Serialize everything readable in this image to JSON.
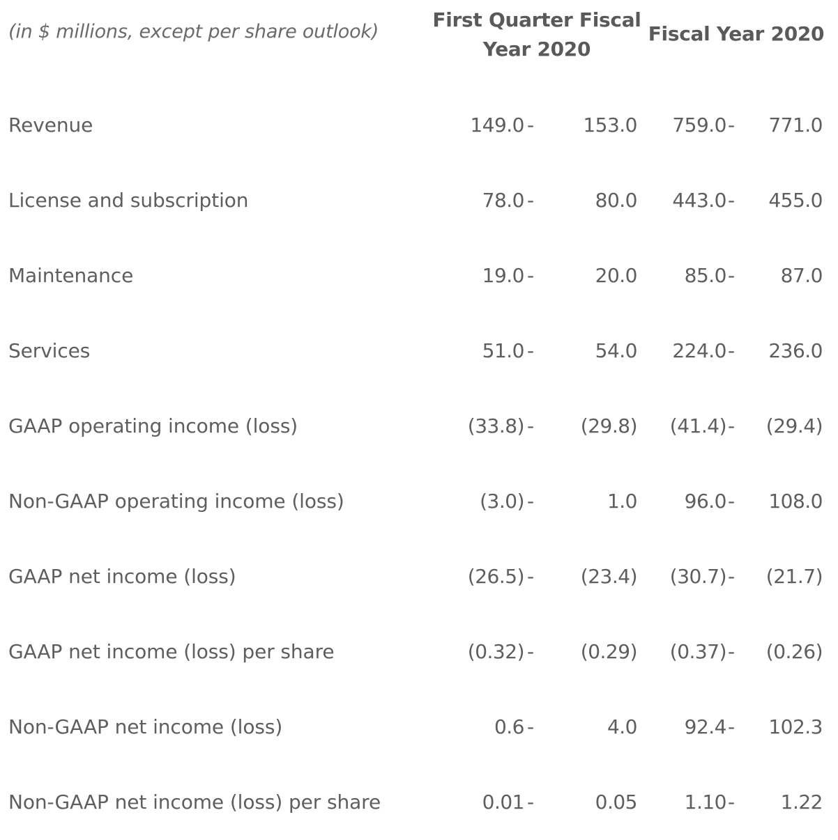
{
  "table": {
    "caption": "(in $ millions, except per share outlook)",
    "columns": {
      "q1": "First Quarter Fiscal Year 2020",
      "fy": "Fiscal Year 2020"
    },
    "separator": "-",
    "rows": [
      {
        "label": "Revenue",
        "q1_low": "149.0",
        "q1_high": "153.0",
        "fy_low": "759.0",
        "fy_high": "771.0"
      },
      {
        "label": "License and subscription",
        "q1_low": "78.0",
        "q1_high": "80.0",
        "fy_low": "443.0",
        "fy_high": "455.0"
      },
      {
        "label": "Maintenance",
        "q1_low": "19.0",
        "q1_high": "20.0",
        "fy_low": "85.0",
        "fy_high": "87.0"
      },
      {
        "label": "Services",
        "q1_low": "51.0",
        "q1_high": "54.0",
        "fy_low": "224.0",
        "fy_high": "236.0"
      },
      {
        "label": "GAAP operating income (loss)",
        "q1_low": "(33.8)",
        "q1_high": "(29.8)",
        "fy_low": "(41.4)",
        "fy_high": "(29.4)"
      },
      {
        "label": "Non-GAAP operating income (loss)",
        "q1_low": "(3.0)",
        "q1_high": "1.0",
        "fy_low": "96.0",
        "fy_high": "108.0"
      },
      {
        "label": "GAAP net income (loss)",
        "q1_low": "(26.5)",
        "q1_high": "(23.4)",
        "fy_low": "(30.7)",
        "fy_high": "(21.7)"
      },
      {
        "label": "GAAP net income (loss) per share",
        "q1_low": "(0.32)",
        "q1_high": "(0.29)",
        "fy_low": "(0.37)",
        "fy_high": "(0.26)"
      },
      {
        "label": "Non-GAAP net income (loss)",
        "q1_low": "0.6",
        "q1_high": "4.0",
        "fy_low": "92.4",
        "fy_high": "102.3"
      },
      {
        "label": "Non-GAAP net income (loss) per share",
        "q1_low": "0.01",
        "q1_high": "0.05",
        "fy_low": "1.10",
        "fy_high": "1.22"
      }
    ]
  }
}
